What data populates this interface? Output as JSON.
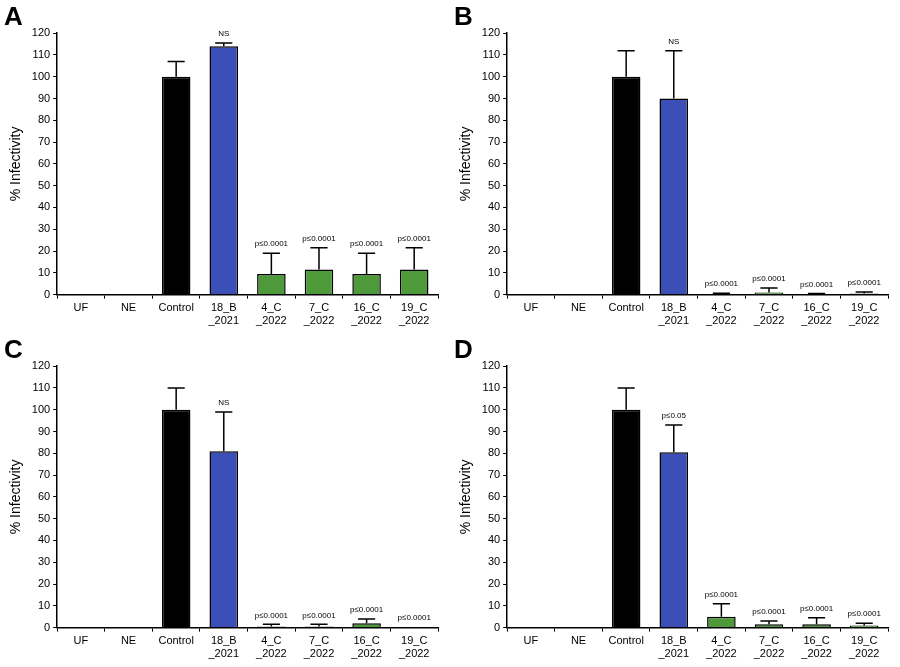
{
  "chart_data": [
    {
      "type": "bar",
      "title": "A",
      "y_label": "% Infectivity",
      "categories": [
        "UF",
        "NE",
        "Control",
        "18_B\n_2021",
        "4_C\n_2022",
        "7_C\n_2022",
        "16_C\n_2022",
        "19_C\n_2022"
      ],
      "values": [
        0,
        0,
        100,
        114,
        9.5,
        11.5,
        9.5,
        11.5
      ],
      "errors": [
        0,
        0,
        7,
        1.5,
        9.5,
        10,
        9.5,
        10
      ],
      "annotations": [
        null,
        null,
        null,
        "NS",
        "p≤0.0001",
        "p≤0.0001",
        "p≤0.0001",
        "p≤0.0001"
      ],
      "colors": [
        "#000000",
        "#000000",
        "#000000",
        "#3c4fb7",
        "#4e9a3b",
        "#4e9a3b",
        "#4e9a3b",
        "#4e9a3b"
      ],
      "ylim": [
        0,
        120
      ],
      "yticks": [
        0,
        10,
        20,
        30,
        40,
        50,
        60,
        70,
        80,
        90,
        100,
        110,
        120
      ],
      "grid": false
    },
    {
      "type": "bar",
      "title": "B",
      "y_label": "% Infectivity",
      "categories": [
        "UF",
        "NE",
        "Control",
        "18_B\n_2021",
        "4_C\n_2022",
        "7_C\n_2022",
        "16_C\n_2022",
        "19_C\n_2022"
      ],
      "values": [
        0,
        0,
        100,
        90,
        0.3,
        1,
        0.3,
        0.5
      ],
      "errors": [
        0,
        0,
        12,
        22,
        0.3,
        2,
        0.2,
        0.7
      ],
      "annotations": [
        null,
        null,
        null,
        "NS",
        "p≤0.0001",
        "p≤0.0001",
        "p≤0.0001",
        "p≤0.0001"
      ],
      "colors": [
        "#000000",
        "#000000",
        "#000000",
        "#3c4fb7",
        "#4e9a3b",
        "#4e9a3b",
        "#4e9a3b",
        "#4e9a3b"
      ],
      "ylim": [
        0,
        120
      ],
      "yticks": [
        0,
        10,
        20,
        30,
        40,
        50,
        60,
        70,
        80,
        90,
        100,
        110,
        120
      ],
      "grid": false
    },
    {
      "type": "bar",
      "title": "C",
      "y_label": "% Infectivity",
      "categories": [
        "UF",
        "NE",
        "Control",
        "18_B\n_2021",
        "4_C\n_2022",
        "7_C\n_2022",
        "16_C\n_2022",
        "19_C\n_2022"
      ],
      "values": [
        0,
        0,
        100,
        81,
        0.5,
        0.5,
        2,
        0.2
      ],
      "errors": [
        0,
        0,
        10,
        18,
        1,
        1,
        2,
        0
      ],
      "annotations": [
        null,
        null,
        null,
        "NS",
        "p≤0.0001",
        "p≤0.0001",
        "p≤0.0001",
        "p≤0.0001"
      ],
      "colors": [
        "#000000",
        "#000000",
        "#000000",
        "#3c4fb7",
        "#4e9a3b",
        "#4e9a3b",
        "#4e9a3b",
        "#4e9a3b"
      ],
      "ylim": [
        0,
        120
      ],
      "yticks": [
        0,
        10,
        20,
        30,
        40,
        50,
        60,
        70,
        80,
        90,
        100,
        110,
        120
      ],
      "grid": false
    },
    {
      "type": "bar",
      "title": "D",
      "y_label": "% Infectivity",
      "categories": [
        "UF",
        "NE",
        "Control",
        "18_B\n_2021",
        "4_C\n_2022",
        "7_C\n_2022",
        "16_C\n_2022",
        "19_C\n_2022"
      ],
      "values": [
        0,
        0,
        100,
        80.5,
        5,
        1.5,
        1.5,
        1
      ],
      "errors": [
        0,
        0,
        10,
        12.5,
        6,
        1.5,
        3,
        1
      ],
      "annotations": [
        null,
        null,
        null,
        "p≤0.05",
        "p≤0.0001",
        "p≤0.0001",
        "p≤0.0001",
        "p≤0.0001"
      ],
      "colors": [
        "#000000",
        "#000000",
        "#000000",
        "#3c4fb7",
        "#4e9a3b",
        "#4e9a3b",
        "#4e9a3b",
        "#4e9a3b"
      ],
      "ylim": [
        0,
        120
      ],
      "yticks": [
        0,
        10,
        20,
        30,
        40,
        50,
        60,
        70,
        80,
        90,
        100,
        110,
        120
      ],
      "grid": false
    }
  ]
}
